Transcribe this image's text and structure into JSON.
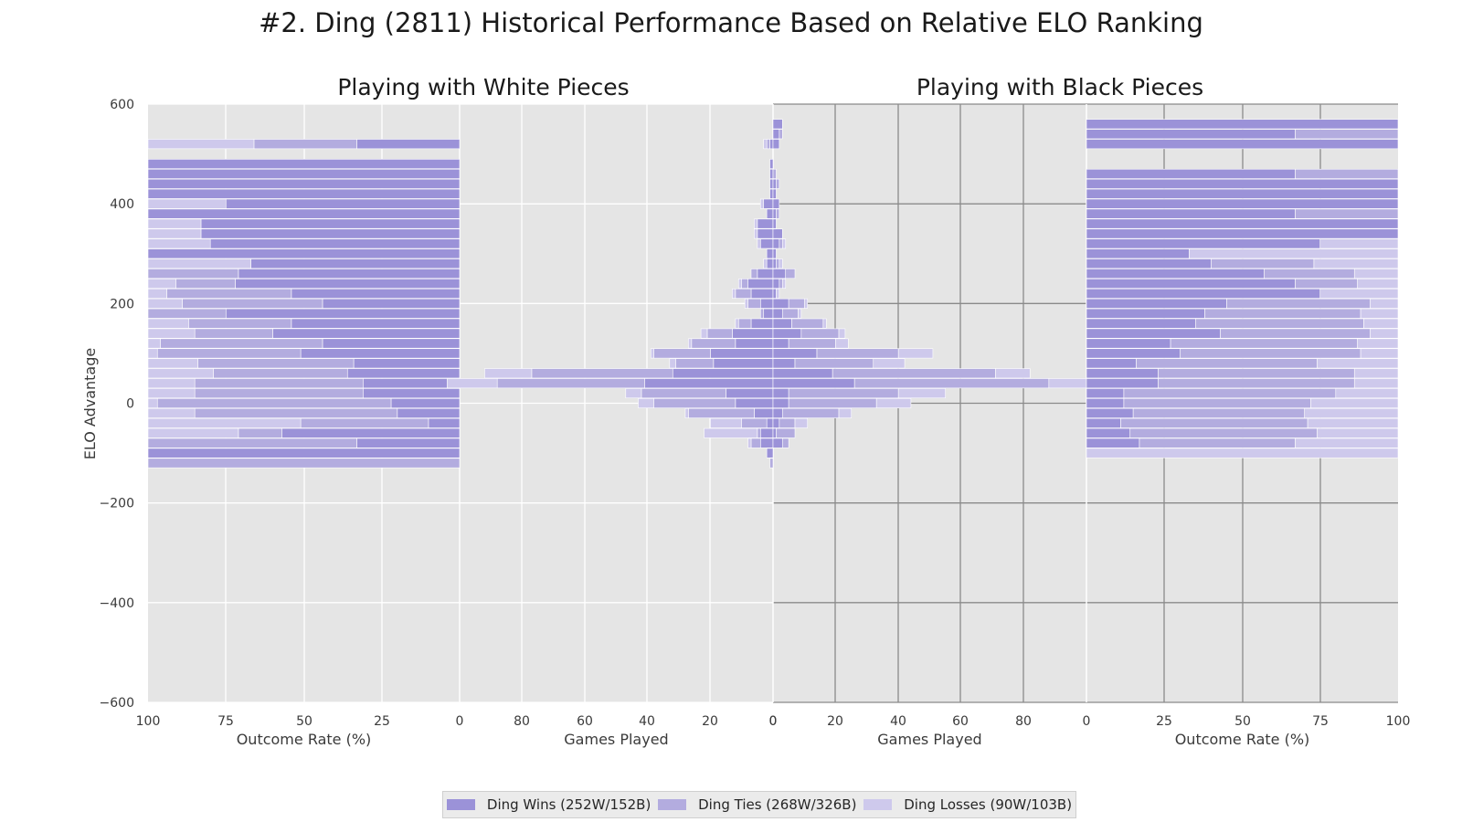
{
  "title": "#2. Ding (2811) Historical Performance Based on Relative ELO Ranking",
  "colors": {
    "wins": "#9b92d8",
    "ties": "#b3acdf",
    "losses": "#cec9ec",
    "panel_bg": "#e5e5e5"
  },
  "chart_data": [
    {
      "panel": "white-outcome",
      "type": "bar",
      "orientation": "horizontal-stacked-percent",
      "xlabel": "Outcome Rate (%)",
      "ylabel": "ELO Advantage",
      "xlim": [
        100,
        0
      ],
      "ylim": [
        -600,
        600
      ],
      "xticks": [
        "100",
        "75",
        "50",
        "25",
        "0"
      ],
      "yticks": [
        "600",
        "400",
        "200",
        "0",
        "−200",
        "−400",
        "−600"
      ],
      "grid": true,
      "bar_height": 20,
      "elo": [
        520,
        480,
        460,
        440,
        420,
        400,
        380,
        360,
        340,
        320,
        300,
        280,
        260,
        240,
        220,
        200,
        180,
        160,
        140,
        120,
        100,
        80,
        60,
        40,
        20,
        0,
        -20,
        -40,
        -60,
        -80,
        -100,
        -120
      ],
      "wins": [
        33,
        100,
        100,
        100,
        100,
        75,
        100,
        83,
        83,
        80,
        100,
        67,
        71,
        72,
        54,
        44,
        75,
        54,
        60,
        44,
        51,
        34,
        36,
        31,
        31,
        22,
        20,
        10,
        57,
        33,
        100,
        0
      ],
      "ties": [
        33,
        0,
        0,
        0,
        0,
        0,
        0,
        0,
        0,
        0,
        0,
        0,
        29,
        19,
        40,
        45,
        25,
        33,
        25,
        52,
        46,
        50,
        43,
        54,
        54,
        75,
        65,
        41,
        14,
        67,
        0,
        100
      ],
      "losses": [
        34,
        0,
        0,
        0,
        0,
        25,
        0,
        17,
        17,
        20,
        0,
        33,
        0,
        9,
        6,
        11,
        0,
        13,
        15,
        4,
        3,
        16,
        21,
        15,
        15,
        3,
        15,
        49,
        29,
        0,
        0,
        0
      ]
    },
    {
      "panel": "white-games",
      "type": "bar",
      "orientation": "horizontal-stacked",
      "xlabel": "Games Played",
      "title": "Playing with White Pieces",
      "xlim": [
        100,
        0
      ],
      "xticks": [
        "0",
        "80",
        "60",
        "40",
        "20",
        "0"
      ],
      "grid": true,
      "bar_height": 20,
      "elo": [
        520,
        480,
        460,
        440,
        420,
        400,
        380,
        360,
        340,
        320,
        300,
        280,
        260,
        240,
        220,
        200,
        180,
        160,
        140,
        120,
        100,
        80,
        60,
        40,
        20,
        0,
        -20,
        -40,
        -60,
        -80,
        -100,
        -120
      ],
      "wins": [
        1,
        1,
        1,
        1,
        1,
        3,
        2,
        5,
        5,
        4,
        2,
        2,
        5,
        8,
        7,
        4,
        3,
        7,
        13,
        12,
        20,
        19,
        32,
        41,
        15,
        12,
        6,
        2,
        4,
        4,
        2,
        0
      ],
      "ties": [
        1,
        0,
        0,
        0,
        0,
        0,
        0,
        0,
        0,
        0,
        0,
        0,
        2,
        2,
        5,
        4,
        1,
        4,
        8,
        14,
        18,
        12,
        45,
        47,
        27,
        26,
        21,
        8,
        1,
        3,
        0,
        1
      ],
      "losses": [
        1,
        0,
        0,
        0,
        0,
        1,
        0,
        1,
        1,
        1,
        0,
        1,
        0,
        1,
        1,
        1,
        0,
        1,
        2,
        1,
        1,
        2,
        15,
        16,
        5,
        5,
        1,
        10,
        17,
        1,
        0,
        0
      ]
    },
    {
      "panel": "black-games",
      "type": "bar",
      "orientation": "horizontal-stacked",
      "xlabel": "Games Played",
      "title": "Playing with Black Pieces",
      "xlim": [
        0,
        100
      ],
      "xticks": [
        "0",
        "20",
        "40",
        "60",
        "80",
        "0"
      ],
      "grid": true,
      "bar_height": 20,
      "elo": [
        560,
        540,
        520,
        460,
        440,
        420,
        400,
        380,
        360,
        340,
        320,
        300,
        280,
        260,
        240,
        220,
        200,
        180,
        160,
        140,
        120,
        100,
        80,
        60,
        40,
        20,
        0,
        -20,
        -40,
        -60,
        -80,
        -100
      ],
      "wins": [
        3,
        2,
        2,
        0,
        1,
        1,
        2,
        1,
        1,
        3,
        2,
        1,
        1,
        4,
        2,
        1,
        5,
        3,
        6,
        9,
        5,
        14,
        7,
        19,
        26,
        5,
        5,
        3,
        2,
        1,
        3,
        0
      ],
      "ties": [
        0,
        1,
        0,
        1,
        1,
        0,
        0,
        1,
        0,
        0,
        1,
        0,
        1,
        3,
        1,
        0,
        5,
        5,
        10,
        12,
        15,
        26,
        25,
        52,
        62,
        35,
        28,
        18,
        5,
        6,
        2,
        0
      ],
      "losses": [
        0,
        0,
        0,
        0,
        0,
        0,
        0,
        0,
        0,
        0,
        1,
        0,
        1,
        0,
        1,
        1,
        1,
        1,
        1,
        2,
        4,
        11,
        10,
        11,
        12,
        15,
        11,
        4,
        4,
        0,
        0,
        0
      ]
    },
    {
      "panel": "black-outcome",
      "type": "bar",
      "orientation": "horizontal-stacked-percent",
      "xlabel": "Outcome Rate (%)",
      "xlim": [
        0,
        100
      ],
      "xticks": [
        "0",
        "25",
        "50",
        "75",
        "100"
      ],
      "grid": true,
      "bar_height": 20,
      "elo": [
        560,
        540,
        520,
        460,
        440,
        420,
        400,
        380,
        360,
        340,
        320,
        300,
        280,
        260,
        240,
        220,
        200,
        180,
        160,
        140,
        120,
        100,
        80,
        60,
        40,
        20,
        0,
        -20,
        -40,
        -60,
        -80,
        -100
      ],
      "wins": [
        100,
        67,
        100,
        67,
        100,
        100,
        100,
        67,
        100,
        100,
        75,
        33,
        40,
        57,
        67,
        75,
        45,
        38,
        35,
        43,
        27,
        30,
        16,
        23,
        23,
        12,
        12,
        15,
        11,
        14,
        17,
        0
      ],
      "ties": [
        0,
        33,
        0,
        33,
        0,
        0,
        0,
        33,
        0,
        0,
        0,
        0,
        33,
        29,
        20,
        0,
        46,
        50,
        54,
        48,
        60,
        58,
        58,
        63,
        63,
        68,
        60,
        55,
        60,
        60,
        50,
        0
      ],
      "losses": [
        0,
        0,
        0,
        0,
        0,
        0,
        0,
        0,
        0,
        0,
        25,
        67,
        27,
        14,
        13,
        25,
        9,
        12,
        11,
        9,
        13,
        12,
        26,
        14,
        14,
        20,
        28,
        30,
        29,
        26,
        33,
        100
      ]
    }
  ],
  "legend": [
    {
      "label": "Ding Wins (252W/152B)",
      "color": "#9b92d8"
    },
    {
      "label": "Ding Ties (268W/326B)",
      "color": "#b3acdf"
    },
    {
      "label": "Ding Losses (90W/103B)",
      "color": "#cec9ec"
    }
  ]
}
